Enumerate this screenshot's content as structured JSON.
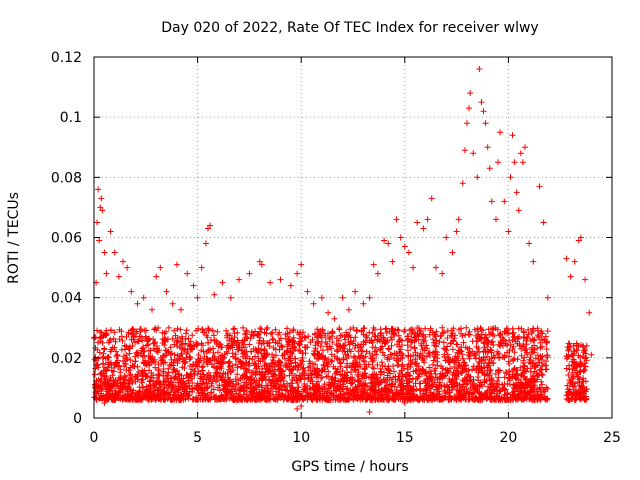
{
  "chart_data": {
    "type": "scatter",
    "title": "Day 020 of 2022, Rate Of TEC Index for receiver wlwy",
    "xlabel": "GPS time / hours",
    "ylabel": "ROTI / TECUs",
    "xlim": [
      0,
      25
    ],
    "ylim": [
      0,
      0.12
    ],
    "x_ticks": [
      "0",
      "5",
      "10",
      "15",
      "20",
      "25"
    ],
    "y_ticks": [
      "0",
      "0.02",
      "0.04",
      "0.06",
      "0.08",
      "0.1",
      "0.12"
    ],
    "grid": true,
    "marker": "plus",
    "color": "#ff0000",
    "series": [
      {
        "points": [
          [
            0.05,
            0.011
          ],
          [
            0.1,
            0.045
          ],
          [
            0.15,
            0.065
          ],
          [
            0.2,
            0.076
          ],
          [
            0.25,
            0.059
          ],
          [
            0.3,
            0.07
          ],
          [
            0.35,
            0.073
          ],
          [
            0.4,
            0.069
          ],
          [
            0.5,
            0.055
          ],
          [
            0.6,
            0.048
          ],
          [
            0.8,
            0.062
          ],
          [
            1.0,
            0.055
          ],
          [
            1.2,
            0.047
          ],
          [
            1.4,
            0.052
          ],
          [
            1.6,
            0.05
          ],
          [
            1.8,
            0.042
          ],
          [
            2.1,
            0.038
          ],
          [
            2.4,
            0.04
          ],
          [
            2.8,
            0.036
          ],
          [
            3.0,
            0.047
          ],
          [
            3.2,
            0.05
          ],
          [
            3.5,
            0.042
          ],
          [
            3.8,
            0.038
          ],
          [
            4.0,
            0.051
          ],
          [
            4.2,
            0.036
          ],
          [
            4.5,
            0.048
          ],
          [
            4.8,
            0.044
          ],
          [
            5.0,
            0.04
          ],
          [
            5.2,
            0.05
          ],
          [
            5.4,
            0.058
          ],
          [
            5.5,
            0.063
          ],
          [
            5.6,
            0.064
          ],
          [
            5.8,
            0.041
          ],
          [
            6.2,
            0.045
          ],
          [
            6.6,
            0.04
          ],
          [
            7.0,
            0.046
          ],
          [
            7.5,
            0.048
          ],
          [
            8.0,
            0.052
          ],
          [
            8.1,
            0.051
          ],
          [
            8.5,
            0.045
          ],
          [
            9.0,
            0.046
          ],
          [
            9.5,
            0.044
          ],
          [
            9.8,
            0.048
          ],
          [
            10.0,
            0.051
          ],
          [
            10.3,
            0.042
          ],
          [
            10.6,
            0.038
          ],
          [
            11.0,
            0.04
          ],
          [
            11.3,
            0.035
          ],
          [
            11.6,
            0.033
          ],
          [
            12.0,
            0.04
          ],
          [
            12.3,
            0.036
          ],
          [
            12.6,
            0.042
          ],
          [
            13.0,
            0.038
          ],
          [
            13.3,
            0.04
          ],
          [
            13.5,
            0.051
          ],
          [
            13.7,
            0.048
          ],
          [
            14.0,
            0.059
          ],
          [
            14.2,
            0.058
          ],
          [
            14.4,
            0.052
          ],
          [
            14.6,
            0.066
          ],
          [
            14.8,
            0.06
          ],
          [
            15.0,
            0.057
          ],
          [
            15.2,
            0.055
          ],
          [
            15.4,
            0.05
          ],
          [
            15.6,
            0.065
          ],
          [
            15.9,
            0.063
          ],
          [
            16.1,
            0.066
          ],
          [
            16.3,
            0.073
          ],
          [
            16.5,
            0.05
          ],
          [
            16.8,
            0.048
          ],
          [
            17.0,
            0.06
          ],
          [
            17.3,
            0.055
          ],
          [
            17.5,
            0.062
          ],
          [
            17.6,
            0.066
          ],
          [
            17.8,
            0.078
          ],
          [
            17.9,
            0.089
          ],
          [
            18.0,
            0.098
          ],
          [
            18.1,
            0.103
          ],
          [
            18.15,
            0.108
          ],
          [
            18.3,
            0.088
          ],
          [
            18.5,
            0.08
          ],
          [
            18.6,
            0.116
          ],
          [
            18.7,
            0.105
          ],
          [
            18.8,
            0.102
          ],
          [
            18.9,
            0.098
          ],
          [
            19.0,
            0.09
          ],
          [
            19.1,
            0.083
          ],
          [
            19.2,
            0.072
          ],
          [
            19.4,
            0.066
          ],
          [
            19.5,
            0.085
          ],
          [
            19.6,
            0.095
          ],
          [
            19.8,
            0.072
          ],
          [
            20.0,
            0.062
          ],
          [
            20.1,
            0.08
          ],
          [
            20.2,
            0.094
          ],
          [
            20.3,
            0.085
          ],
          [
            20.4,
            0.075
          ],
          [
            20.5,
            0.069
          ],
          [
            20.6,
            0.088
          ],
          [
            20.7,
            0.085
          ],
          [
            20.8,
            0.09
          ],
          [
            21.0,
            0.058
          ],
          [
            21.2,
            0.052
          ],
          [
            21.5,
            0.077
          ],
          [
            21.7,
            0.065
          ],
          [
            21.9,
            0.04
          ],
          [
            22.8,
            0.053
          ],
          [
            23.0,
            0.047
          ],
          [
            23.2,
            0.052
          ],
          [
            23.4,
            0.059
          ],
          [
            23.5,
            0.06
          ],
          [
            23.7,
            0.046
          ],
          [
            23.9,
            0.035
          ],
          [
            24.0,
            0.021
          ],
          [
            13.3,
            0.002
          ],
          [
            9.8,
            0.003
          ],
          [
            0.5,
            0.005
          ],
          [
            5.0,
            0.006
          ],
          [
            10.0,
            0.004
          ],
          [
            15.0,
            0.005
          ]
        ],
        "dense_bands": [
          {
            "x": [
              0.0,
              21.9
            ],
            "y": [
              0.006,
              0.03
            ]
          },
          {
            "x": [
              22.8,
              23.8
            ],
            "y": [
              0.006,
              0.025
            ]
          }
        ]
      }
    ]
  }
}
